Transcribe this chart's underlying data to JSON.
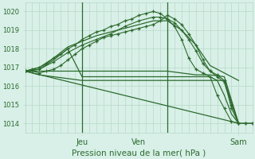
{
  "xlabel": "Pression niveau de la mer( hPa )",
  "bg_color": "#d8f0e8",
  "grid_color": "#b8d8c8",
  "line_color": "#2d6a2d",
  "ylim": [
    1013.5,
    1020.5
  ],
  "xlim": [
    0,
    96
  ],
  "xtick_positions": [
    24,
    48,
    90
  ],
  "xtick_labels": [
    "Jeu",
    "Ven",
    "Sam"
  ],
  "ytick_positions": [
    1014,
    1015,
    1016,
    1017,
    1018,
    1019,
    1020
  ],
  "lines": [
    {
      "x": [
        0,
        3,
        6,
        9,
        12,
        15,
        18,
        21,
        24,
        27,
        30,
        33,
        36,
        39,
        42,
        45,
        48,
        51,
        54,
        57,
        60,
        63,
        66,
        69,
        72,
        75,
        78,
        81,
        84,
        87,
        90,
        93,
        96
      ],
      "y": [
        1016.8,
        1016.8,
        1016.7,
        1016.8,
        1016.9,
        1017.1,
        1017.4,
        1017.7,
        1018.0,
        1018.2,
        1018.4,
        1018.6,
        1018.7,
        1018.8,
        1018.9,
        1019.0,
        1019.1,
        1019.2,
        1019.3,
        1019.5,
        1019.8,
        1019.6,
        1019.3,
        1018.8,
        1018.2,
        1017.4,
        1016.8,
        1016.5,
        1016.2,
        1015.0,
        1014.0,
        1014.0,
        1014.0
      ],
      "with_markers": true
    },
    {
      "x": [
        0,
        3,
        6,
        9,
        12,
        15,
        18,
        21,
        24,
        27,
        30,
        33,
        36,
        39,
        42,
        45,
        48,
        51,
        54,
        57,
        60,
        63,
        66,
        69,
        72,
        75,
        78,
        81,
        84,
        87,
        90,
        93,
        96
      ],
      "y": [
        1016.8,
        1016.9,
        1017.0,
        1017.2,
        1017.5,
        1017.7,
        1018.0,
        1018.2,
        1018.5,
        1018.7,
        1018.9,
        1019.0,
        1019.2,
        1019.3,
        1019.5,
        1019.6,
        1019.8,
        1019.9,
        1020.0,
        1019.9,
        1019.6,
        1019.4,
        1019.0,
        1018.5,
        1017.9,
        1017.2,
        1016.8,
        1016.6,
        1016.3,
        1014.8,
        1014.0,
        1014.0,
        1014.0
      ],
      "with_markers": true
    },
    {
      "x": [
        0,
        6,
        12,
        18,
        24,
        30,
        36,
        42,
        48,
        54,
        57,
        60,
        63,
        66,
        69,
        72,
        75,
        78,
        81,
        84,
        87,
        90
      ],
      "y": [
        1016.8,
        1016.9,
        1017.3,
        1017.8,
        1018.2,
        1018.5,
        1018.8,
        1019.2,
        1019.5,
        1019.7,
        1019.7,
        1019.6,
        1019.2,
        1018.5,
        1017.5,
        1016.9,
        1016.7,
        1016.5,
        1015.5,
        1014.8,
        1014.1,
        1014.0
      ],
      "with_markers": true
    },
    {
      "x": [
        0,
        6,
        12,
        18,
        24,
        30,
        36,
        42,
        48,
        54,
        60,
        66,
        72,
        78,
        84,
        90
      ],
      "y": [
        1016.8,
        1017.0,
        1017.5,
        1018.1,
        1018.4,
        1018.7,
        1018.9,
        1019.1,
        1019.3,
        1019.5,
        1019.5,
        1019.0,
        1018.2,
        1017.1,
        1016.7,
        1016.3
      ],
      "with_markers": false
    },
    {
      "x": [
        0,
        6,
        12,
        18,
        24,
        30,
        36,
        42,
        48,
        54,
        60,
        66,
        72,
        78,
        84,
        90
      ],
      "y": [
        1016.8,
        1016.8,
        1016.8,
        1016.8,
        1016.8,
        1016.8,
        1016.8,
        1016.8,
        1016.8,
        1016.8,
        1016.8,
        1016.7,
        1016.6,
        1016.6,
        1016.5,
        1014.0
      ],
      "with_markers": false
    },
    {
      "x": [
        0,
        6,
        12,
        18,
        24,
        30,
        36,
        42,
        48,
        54,
        60,
        66,
        72,
        78,
        84,
        90
      ],
      "y": [
        1016.8,
        1016.6,
        1016.5,
        1016.4,
        1016.3,
        1016.3,
        1016.3,
        1016.3,
        1016.3,
        1016.3,
        1016.3,
        1016.3,
        1016.3,
        1016.3,
        1016.3,
        1014.0
      ],
      "with_markers": false
    },
    {
      "x": [
        0,
        90
      ],
      "y": [
        1016.8,
        1014.0
      ],
      "with_markers": false
    },
    {
      "x": [
        0,
        6,
        12,
        18,
        24,
        30,
        36,
        42,
        48,
        54,
        60,
        66,
        72,
        75,
        78,
        81,
        84,
        87,
        90
      ],
      "y": [
        1016.8,
        1016.9,
        1017.4,
        1018.0,
        1016.5,
        1016.5,
        1016.5,
        1016.5,
        1016.5,
        1016.5,
        1016.5,
        1016.5,
        1016.5,
        1016.5,
        1016.5,
        1016.3,
        1015.5,
        1014.5,
        1014.0
      ],
      "with_markers": false
    }
  ],
  "vline_positions": [
    24,
    60
  ],
  "vline_color": "#2d6a2d",
  "xlabel_fontsize": 7.5,
  "ytick_fontsize": 6.0,
  "xtick_fontsize": 7.0
}
